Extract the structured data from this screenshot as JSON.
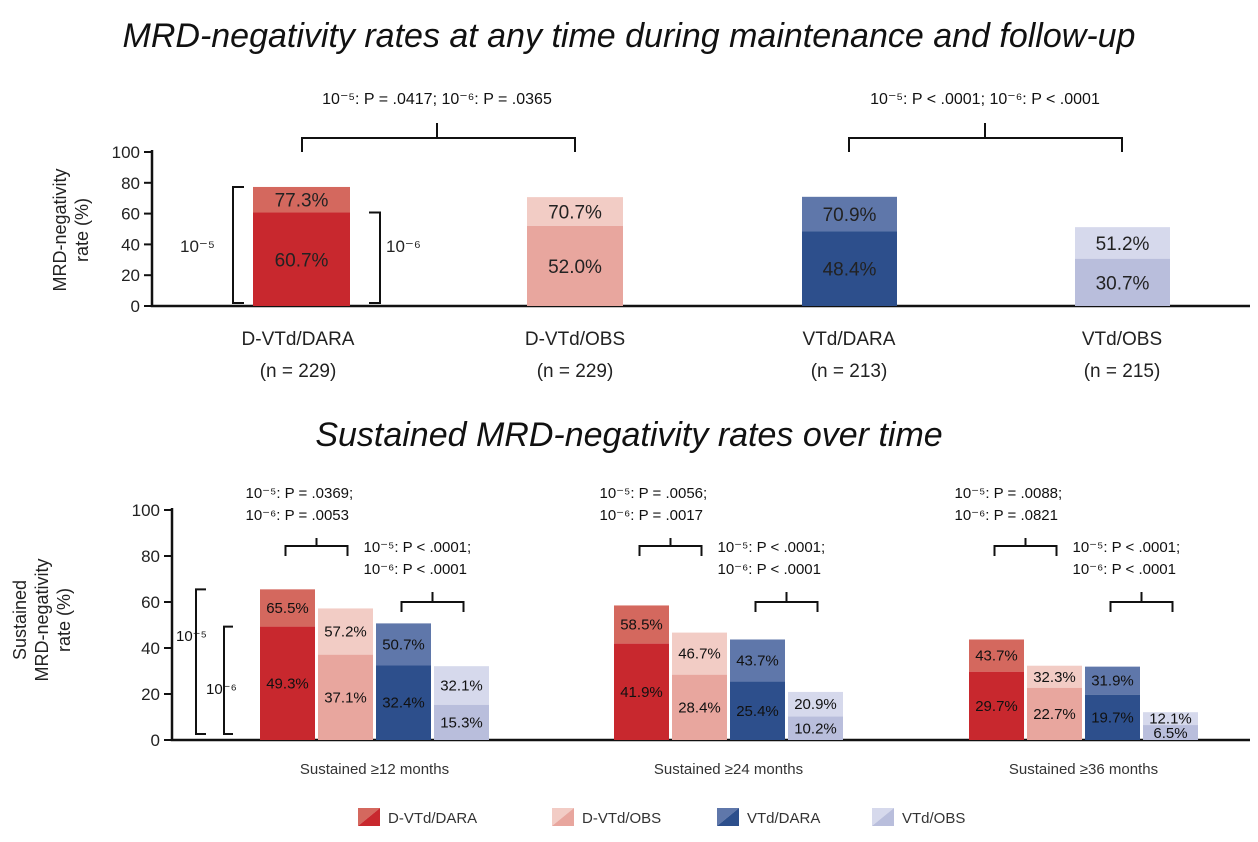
{
  "chart_data": [
    {
      "type": "bar",
      "title": "MRD-negativity rates at any time during maintenance and follow-up",
      "ylabel": "MRD-negativity rate (%)",
      "ylabel_lines": [
        "MRD-negativity",
        "rate (%)"
      ],
      "ylim": [
        0,
        100
      ],
      "yticks": [
        0,
        20,
        40,
        60,
        80,
        100
      ],
      "categories": [
        {
          "name": "D-VTd/DARA",
          "n": "(n = 229)"
        },
        {
          "name": "D-VTd/OBS",
          "n": "(n = 229)"
        },
        {
          "name": "VTd/DARA",
          "n": "(n = 213)"
        },
        {
          "name": "VTd/OBS",
          "n": "(n = 215)"
        }
      ],
      "series": [
        {
          "name": "10⁻⁵",
          "values": [
            77.3,
            70.7,
            70.9,
            51.2
          ],
          "labels": [
            "77.3%",
            "70.7%",
            "70.9%",
            "51.2%"
          ]
        },
        {
          "name": "10⁻⁶",
          "values": [
            60.7,
            52.0,
            48.4,
            30.7
          ],
          "labels": [
            "60.7%",
            "52.0%",
            "48.4%",
            "30.7%"
          ]
        }
      ],
      "threshold_labels": {
        "left": "10⁻⁵",
        "right": "10⁻⁶"
      },
      "comparisons": [
        {
          "bars": [
            0,
            1
          ],
          "text": "10⁻⁵: P = .0417; 10⁻⁶: P = .0365"
        },
        {
          "bars": [
            2,
            3
          ],
          "text": "10⁻⁵: P < .0001; 10⁻⁶: P < .0001"
        }
      ]
    },
    {
      "type": "bar",
      "title": "Sustained MRD-negativity rates over time",
      "ylabel": "Sustained MRD-negativity rate (%)",
      "ylabel_lines": [
        "Sustained",
        "MRD-negativity",
        "rate (%)"
      ],
      "ylim": [
        0,
        100
      ],
      "yticks": [
        0,
        20,
        40,
        60,
        80,
        100
      ],
      "groups": [
        "Sustained ≥12 months",
        "Sustained ≥24 months",
        "Sustained ≥36 months"
      ],
      "arms": [
        "D-VTd/DARA",
        "D-VTd/OBS",
        "VTd/DARA",
        "VTd/OBS"
      ],
      "series": [
        {
          "name": "10⁻⁵",
          "values": [
            [
              65.5,
              57.2,
              50.7,
              32.1
            ],
            [
              58.5,
              46.7,
              43.7,
              20.9
            ],
            [
              43.7,
              32.3,
              31.9,
              12.1
            ]
          ],
          "labels": [
            [
              "65.5%",
              "57.2%",
              "50.7%",
              "32.1%"
            ],
            [
              "58.5%",
              "46.7%",
              "43.7%",
              "20.9%"
            ],
            [
              "43.7%",
              "32.3%",
              "31.9%",
              "12.1%"
            ]
          ]
        },
        {
          "name": "10⁻⁶",
          "values": [
            [
              49.3,
              37.1,
              32.4,
              15.3
            ],
            [
              41.9,
              28.4,
              25.4,
              10.2
            ],
            [
              29.7,
              22.7,
              19.7,
              6.5
            ]
          ],
          "labels": [
            [
              "49.3%",
              "37.1%",
              "32.4%",
              "15.3%"
            ],
            [
              "41.9%",
              "28.4%",
              "25.4%",
              "10.2%"
            ],
            [
              "29.7%",
              "22.7%",
              "19.7%",
              "6.5%"
            ]
          ]
        }
      ],
      "threshold_labels": {
        "outer": "10⁻⁵",
        "inner": "10⁻⁶"
      },
      "comparisons": [
        [
          {
            "bars": [
              0,
              1
            ],
            "lines": [
              "10⁻⁵: P = .0369;",
              "10⁻⁶: P = .0053"
            ]
          },
          {
            "bars": [
              2,
              3
            ],
            "lines": [
              "10⁻⁵: P < .0001;",
              "10⁻⁶: P < .0001"
            ]
          }
        ],
        [
          {
            "bars": [
              0,
              1
            ],
            "lines": [
              "10⁻⁵: P = .0056;",
              "10⁻⁶: P = .0017"
            ]
          },
          {
            "bars": [
              2,
              3
            ],
            "lines": [
              "10⁻⁵: P < .0001;",
              "10⁻⁶: P < .0001"
            ]
          }
        ],
        [
          {
            "bars": [
              0,
              1
            ],
            "lines": [
              "10⁻⁵: P = .0088;",
              "10⁻⁶: P = .0821"
            ]
          },
          {
            "bars": [
              2,
              3
            ],
            "lines": [
              "10⁻⁵: P < .0001;",
              "10⁻⁶: P < .0001"
            ]
          }
        ]
      ]
    }
  ],
  "legend": [
    {
      "label": "D-VTd/DARA",
      "color": "#c8282e"
    },
    {
      "label": "D-VTd/OBS",
      "color": "#e8a69e"
    },
    {
      "label": "VTd/DARA",
      "color": "#2d4f8c"
    },
    {
      "label": "VTd/OBS",
      "color": "#b9bedc"
    }
  ],
  "colors": {
    "D-VTd/DARA": {
      "light": "#d4685e",
      "dark": "#c8282e"
    },
    "D-VTd/OBS": {
      "light": "#f2ccc5",
      "dark": "#e8a69e"
    },
    "VTd/DARA": {
      "light": "#5f77aa",
      "dark": "#2d4f8c"
    },
    "VTd/OBS": {
      "light": "#d6d9ec",
      "dark": "#b9bedc"
    }
  }
}
